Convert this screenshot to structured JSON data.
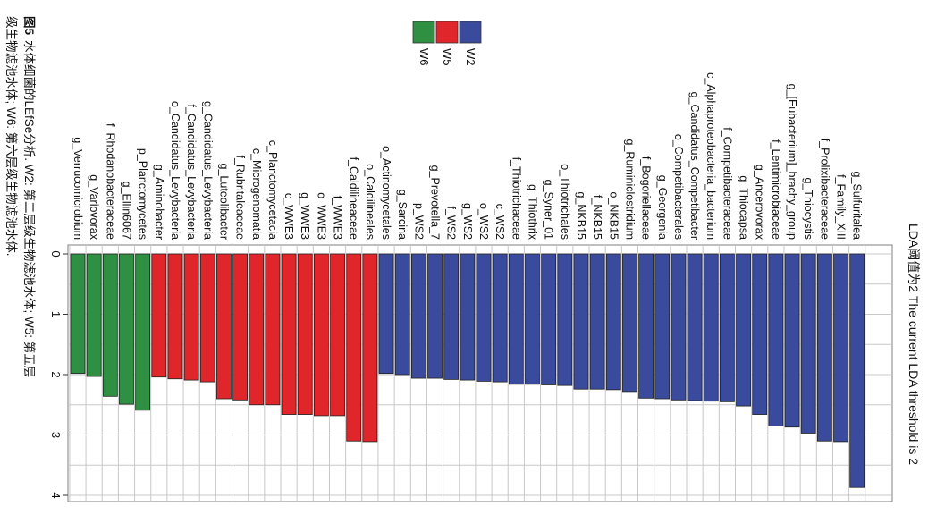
{
  "chart_data": {
    "type": "bar",
    "orientation": "rotated-90",
    "title": "LDA阈值为2 The current LDA threshold is 2",
    "ylim": [
      0,
      4
    ],
    "yticks": [
      0,
      1,
      2,
      3,
      4
    ],
    "grid": true,
    "legend": {
      "position": "top-center",
      "entries": [
        {
          "name": "W2",
          "color": "#3a4a9c"
        },
        {
          "name": "W5",
          "color": "#e0262a"
        },
        {
          "name": "W6",
          "color": "#2f8f43"
        }
      ]
    },
    "groups": [
      {
        "name": "W6",
        "color": "#2f8f43",
        "bars": [
          {
            "label": "g_Verrucomicrobium",
            "value": 1.98
          },
          {
            "label": "g_Variovorax",
            "value": 2.03
          },
          {
            "label": "f_Rhodanobacteraceae",
            "value": 2.36
          },
          {
            "label": "g_Ellin6067",
            "value": 2.49
          },
          {
            "label": "p_Planctomycetes",
            "value": 2.59
          }
        ]
      },
      {
        "name": "W5",
        "color": "#e0262a",
        "bars": [
          {
            "label": "g_Aminobacter",
            "value": 2.04
          },
          {
            "label": "o_Candidatus_Levybacteria",
            "value": 2.07
          },
          {
            "label": "f_Candidatus_Levybacteria",
            "value": 2.09
          },
          {
            "label": "g_Candidatus_Levybacteria",
            "value": 2.12
          },
          {
            "label": "g_Luteolibacter",
            "value": 2.4
          },
          {
            "label": "f_Rubritaleaceae",
            "value": 2.42
          },
          {
            "label": "c_Microgenomatia",
            "value": 2.5
          },
          {
            "label": "c_Planctomycetacia",
            "value": 2.5
          },
          {
            "label": "c_WWE3",
            "value": 2.66
          },
          {
            "label": "g_WWE3",
            "value": 2.66
          },
          {
            "label": "o_WWE3",
            "value": 2.68
          },
          {
            "label": "f_WWE3",
            "value": 2.68
          },
          {
            "label": "f_Caldilineaceae",
            "value": 3.1
          },
          {
            "label": "o_Caldilineales",
            "value": 3.11
          }
        ]
      },
      {
        "name": "W2",
        "color": "#3a4a9c",
        "bars": [
          {
            "label": "o_Actinomycetales",
            "value": 1.98
          },
          {
            "label": "g_Sarcina",
            "value": 2.0
          },
          {
            "label": "p_WS2",
            "value": 2.06
          },
          {
            "label": "g_Prevotella_7",
            "value": 2.06
          },
          {
            "label": "f_WS2",
            "value": 2.08
          },
          {
            "label": "g_WS2",
            "value": 2.09
          },
          {
            "label": "o_WS2",
            "value": 2.11
          },
          {
            "label": "c_WS2",
            "value": 2.12
          },
          {
            "label": "f_Thiotrichaceae",
            "value": 2.16
          },
          {
            "label": "g_Thiothrix",
            "value": 2.16
          },
          {
            "label": "g_Syner_01",
            "value": 2.17
          },
          {
            "label": "o_Thiotrichales",
            "value": 2.18
          },
          {
            "label": "g_NKB15",
            "value": 2.24
          },
          {
            "label": "f_NKB15",
            "value": 2.24
          },
          {
            "label": "o_NKB15",
            "value": 2.25
          },
          {
            "label": "g_Ruminiclostridium",
            "value": 2.28
          },
          {
            "label": "f_Bogoriellaceae",
            "value": 2.39
          },
          {
            "label": "g_Georgenia",
            "value": 2.4
          },
          {
            "label": "o_Competibacterales",
            "value": 2.42
          },
          {
            "label": "g_Candidatus_Competibacter",
            "value": 2.43
          },
          {
            "label": "c_Alphaproteobacteria_bacterium",
            "value": 2.44
          },
          {
            "label": "f_Competibacteraceae",
            "value": 2.45
          },
          {
            "label": "g_Thiocapsa",
            "value": 2.52
          },
          {
            "label": "g_Ancerovorax",
            "value": 2.66
          },
          {
            "label": "f_Lentimicrobiaceae",
            "value": 2.85
          },
          {
            "label": "g_[Eubacterium]_brachy_group",
            "value": 2.87
          },
          {
            "label": "g_Thiocystis",
            "value": 2.97
          },
          {
            "label": "f_Prolixibacteraceae",
            "value": 3.1
          },
          {
            "label": "f_Family_XIII",
            "value": 3.11
          },
          {
            "label": "g_Sulfuritalea",
            "value": 3.87
          }
        ]
      }
    ]
  },
  "caption": {
    "line1_fig": "图5",
    "line1_text": "水体细菌的LEfSe分析. W2: 第二层级生物滤池水体; W5: 第五层",
    "line2_text": "级生物滤池水体; W6: 第六层级生物滤池水体."
  }
}
